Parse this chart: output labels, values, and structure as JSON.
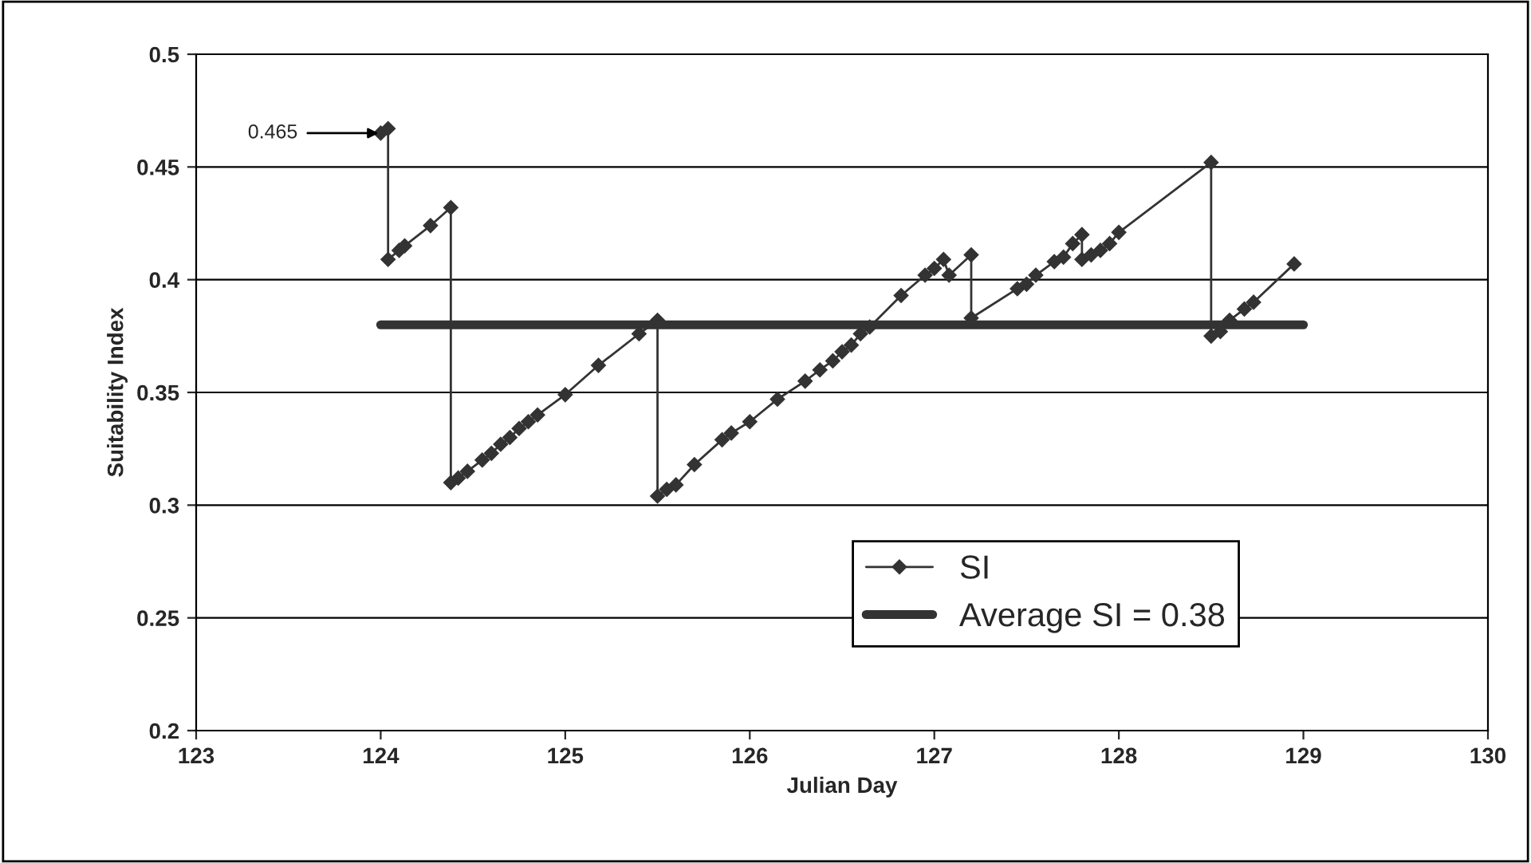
{
  "chart_data": {
    "type": "line",
    "xlabel": "Julian Day",
    "ylabel": "Suitability Index",
    "xlim": [
      123,
      130
    ],
    "xticks": [
      123,
      124,
      125,
      126,
      127,
      128,
      129,
      130
    ],
    "ylim": [
      0.2,
      0.5
    ],
    "yticks": [
      0.2,
      0.25,
      0.3,
      0.35,
      0.4,
      0.45,
      0.5
    ],
    "grid": "y",
    "legend": "bottom right",
    "series": [
      {
        "name": "SI",
        "color": "#333333",
        "marker": "diamond",
        "x": [
          124.0,
          124.04,
          124.04,
          124.1,
          124.13,
          124.27,
          124.38,
          124.38,
          124.42,
          124.47,
          124.55,
          124.6,
          124.65,
          124.7,
          124.75,
          124.8,
          124.85,
          125.0,
          125.18,
          125.4,
          125.5,
          125.5,
          125.55,
          125.6,
          125.7,
          125.85,
          125.9,
          126.0,
          126.15,
          126.3,
          126.38,
          126.45,
          126.5,
          126.55,
          126.6,
          126.65,
          126.82,
          126.95,
          127.0,
          127.05,
          127.08,
          127.2,
          127.2,
          127.45,
          127.5,
          127.55,
          127.65,
          127.7,
          127.75,
          127.8,
          127.8,
          127.85,
          127.9,
          127.95,
          128.0,
          128.5,
          128.5,
          128.55,
          128.6,
          128.68,
          128.73,
          128.95
        ],
        "values": [
          0.465,
          0.467,
          0.409,
          0.413,
          0.415,
          0.424,
          0.432,
          0.31,
          0.312,
          0.315,
          0.32,
          0.323,
          0.327,
          0.33,
          0.334,
          0.337,
          0.34,
          0.349,
          0.362,
          0.376,
          0.382,
          0.304,
          0.307,
          0.309,
          0.318,
          0.329,
          0.332,
          0.337,
          0.347,
          0.355,
          0.36,
          0.364,
          0.368,
          0.371,
          0.376,
          0.379,
          0.393,
          0.402,
          0.405,
          0.409,
          0.402,
          0.411,
          0.383,
          0.396,
          0.398,
          0.402,
          0.408,
          0.41,
          0.416,
          0.42,
          0.409,
          0.411,
          0.413,
          0.416,
          0.421,
          0.452,
          0.375,
          0.377,
          0.382,
          0.387,
          0.39,
          0.407
        ]
      },
      {
        "name": "Average SI = 0.38",
        "color": "#333333",
        "marker": "none",
        "x": [
          124,
          129
        ],
        "values": [
          0.38,
          0.38
        ]
      }
    ],
    "annotations": [
      {
        "text": "0.465",
        "x": 124.0,
        "y": 0.465
      }
    ]
  }
}
